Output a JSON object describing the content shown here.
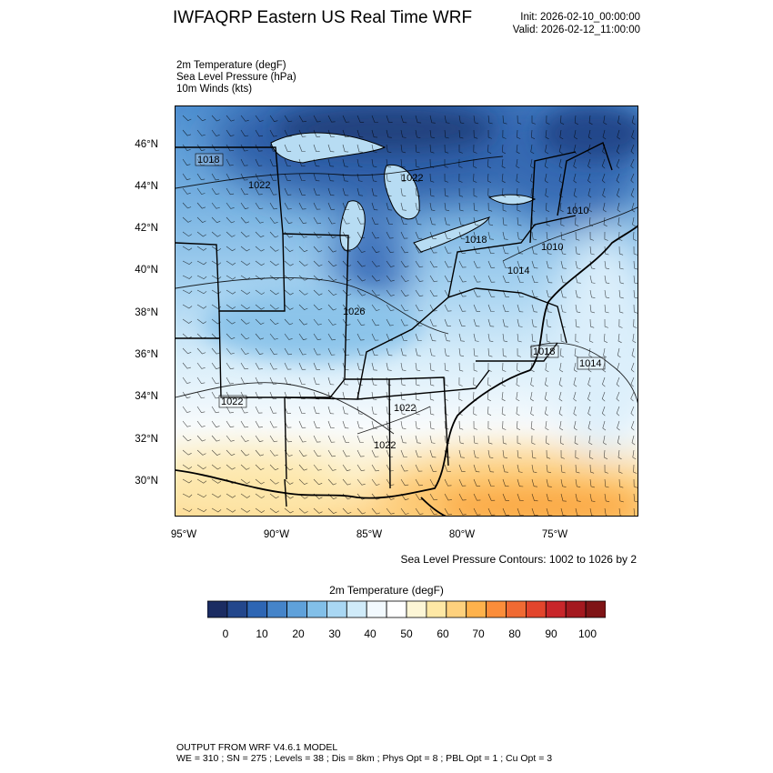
{
  "header": {
    "title": "IWFAQRP Eastern US Real Time WRF",
    "init": "Init: 2026-02-10_00:00:00",
    "valid": "Valid: 2026-02-12_11:00:00"
  },
  "fields": [
    "2m Temperature   (degF)",
    "Sea Level Pressure   (hPa)",
    "10m Winds   (kts)"
  ],
  "map": {
    "lat_labels": [
      "46°N",
      "44°N",
      "42°N",
      "40°N",
      "38°N",
      "36°N",
      "34°N",
      "32°N",
      "30°N"
    ],
    "lon_labels": [
      "95°W",
      "90°W",
      "85°W",
      "80°W",
      "75°W"
    ],
    "pressure_labels": [
      "1018",
      "1022",
      "1022",
      "1018",
      "1010",
      "1014",
      "1010",
      "1026",
      "1018",
      "1014",
      "1022",
      "1022",
      "1022"
    ],
    "contour_note": "Sea Level Pressure Contours: 1002 to 1026 by 2"
  },
  "colorbar": {
    "title": "2m Temperature  (degF)",
    "labels": [
      "0",
      "10",
      "20",
      "30",
      "40",
      "50",
      "60",
      "70",
      "80",
      "90",
      "100"
    ],
    "colors": [
      "#1b2c62",
      "#23478c",
      "#2e66b4",
      "#4584c9",
      "#5fa1da",
      "#82bfe8",
      "#a9d7f3",
      "#d0ebf9",
      "#f2f9fe",
      "#ffffff",
      "#fdf6d6",
      "#fee8a5",
      "#fed17d",
      "#feb24c",
      "#fb8d3a",
      "#f06a33",
      "#e2452c",
      "#c8262a",
      "#a4191f",
      "#7f1416"
    ]
  },
  "footer": {
    "line1": "OUTPUT FROM WRF V4.6.1 MODEL",
    "line2": "WE = 310 ; SN = 275 ; Levels = 38 ; Dis = 8km ; Phys Opt = 8 ; PBL Opt = 1 ; Cu Opt = 3"
  }
}
